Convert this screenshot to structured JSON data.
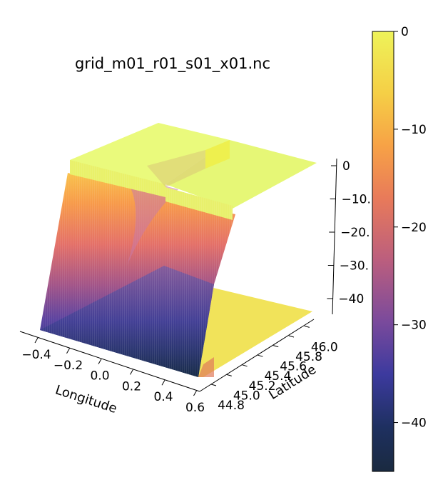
{
  "chart_data": {
    "type": "surface",
    "title": "grid_m01_r01_s01_x01.nc",
    "xlabel": "Longitude",
    "ylabel": "Latitude",
    "zlabel": "",
    "x_ticks": [
      "−0.4",
      "−0.2",
      "0.0",
      "0.2",
      "0.4",
      "0.6"
    ],
    "y_ticks": [
      "44.8",
      "45.0",
      "45.2",
      "45.4",
      "45.6",
      "45.8",
      "46.0"
    ],
    "z_ticks": [
      "0",
      "−10",
      "−20",
      "−30",
      "−40"
    ],
    "z_ticks_visible": [
      "0",
      "−10.",
      "−20.",
      "−30.",
      "−40"
    ],
    "xlim": [
      -0.55,
      0.65
    ],
    "ylim": [
      44.75,
      46.1
    ],
    "zlim": [
      -45,
      0
    ],
    "colormap": "plasma-like (dark navy → purple → pink → orange → yellow)",
    "colorbar": {
      "ticks": [
        "0",
        "−10",
        "−20",
        "−30",
        "−40"
      ],
      "range": [
        -45,
        0
      ],
      "stops": [
        "#1a2a40",
        "#1e3060",
        "#3c3a9e",
        "#7a4a9c",
        "#bb5e7e",
        "#e87a5a",
        "#f7a246",
        "#f5cf46",
        "#eef359"
      ]
    },
    "surface": {
      "description_values": {
        "shelf_depth": 0,
        "basin_depth": -45,
        "shelf_latitudes": [
          45.45,
          46.1
        ],
        "basin_latitudes": [
          44.75,
          45.2
        ]
      }
    },
    "colors": {
      "shelf_top": "#eafa7c",
      "shelf_edge": "#e9f56a",
      "basin_floor_yellow": "#f1e35a",
      "deep": "#1a2a40"
    }
  }
}
